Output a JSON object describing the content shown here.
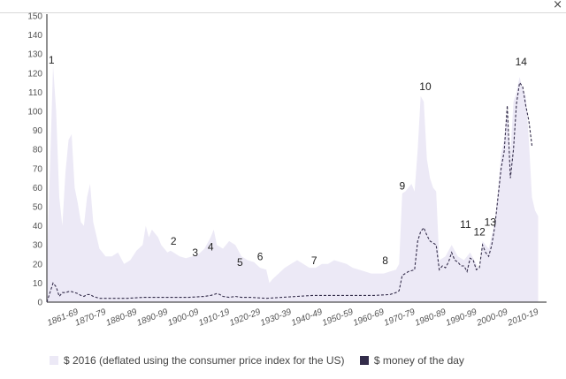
{
  "window": {
    "close_label": "×",
    "close_icon": "close-icon"
  },
  "chart_data": {
    "type": "area",
    "title": "",
    "xlabel": "",
    "ylabel": "",
    "ylim": [
      0,
      150
    ],
    "xlim": [
      1859,
      2019
    ],
    "grid": false,
    "legend_position": "bottom-left",
    "y_ticks": [
      0,
      10,
      20,
      30,
      40,
      50,
      60,
      70,
      80,
      90,
      100,
      110,
      120,
      130,
      140,
      150
    ],
    "x_ticks": [
      {
        "label": "1861-69",
        "x": 1861
      },
      {
        "label": "1870-79",
        "x": 1870
      },
      {
        "label": "1880-89",
        "x": 1880
      },
      {
        "label": "1890-99",
        "x": 1890
      },
      {
        "label": "1900-09",
        "x": 1900
      },
      {
        "label": "1910-19",
        "x": 1910
      },
      {
        "label": "1920-29",
        "x": 1920
      },
      {
        "label": "1930-39",
        "x": 1930
      },
      {
        "label": "1940-49",
        "x": 1940
      },
      {
        "label": "1950-59",
        "x": 1950
      },
      {
        "label": "1960-69",
        "x": 1960
      },
      {
        "label": "1970-79",
        "x": 1970
      },
      {
        "label": "1980-89",
        "x": 1980
      },
      {
        "label": "1990-99",
        "x": 1990
      },
      {
        "label": "2000-09",
        "x": 2000
      },
      {
        "label": "2010-19",
        "x": 2010
      }
    ],
    "series": [
      {
        "name": "$ 2016 (deflated using the consumer price index for the US)",
        "style": "area",
        "color": "#ece9f6",
        "x": [
          1859,
          1860,
          1861,
          1862,
          1863,
          1864,
          1865,
          1866,
          1867,
          1868,
          1869,
          1870,
          1871,
          1872,
          1873,
          1874,
          1875,
          1876,
          1877,
          1878,
          1880,
          1882,
          1884,
          1886,
          1888,
          1890,
          1891,
          1892,
          1893,
          1894,
          1895,
          1896,
          1897,
          1898,
          1899,
          1900,
          1902,
          1904,
          1906,
          1908,
          1910,
          1912,
          1913,
          1914,
          1916,
          1918,
          1920,
          1922,
          1924,
          1926,
          1928,
          1930,
          1931,
          1932,
          1934,
          1936,
          1938,
          1940,
          1942,
          1944,
          1946,
          1948,
          1950,
          1952,
          1954,
          1956,
          1958,
          1960,
          1962,
          1964,
          1966,
          1968,
          1970,
          1972,
          1973,
          1974,
          1975,
          1976,
          1977,
          1978,
          1979,
          1980,
          1981,
          1982,
          1983,
          1984,
          1985,
          1986,
          1988,
          1990,
          1992,
          1994,
          1996,
          1998,
          1999,
          2000,
          2001,
          2002,
          2003,
          2004,
          2005,
          2006,
          2007,
          2008,
          2009,
          2010,
          2011,
          2012,
          2013,
          2014,
          2015,
          2016,
          2017,
          2018
        ],
        "values": [
          20,
          70,
          124,
          100,
          55,
          40,
          68,
          85,
          88,
          60,
          52,
          42,
          40,
          55,
          62,
          42,
          35,
          28,
          26,
          24,
          24,
          26,
          20,
          22,
          27,
          30,
          40,
          34,
          38,
          36,
          34,
          30,
          28,
          26,
          27,
          26,
          24,
          23,
          24,
          25,
          28,
          34,
          38,
          30,
          28,
          32,
          30,
          24,
          22,
          21,
          18,
          17,
          10,
          12,
          15,
          18,
          20,
          22,
          20,
          18,
          18,
          20,
          20,
          22,
          21,
          20,
          18,
          17,
          16,
          15,
          15,
          15,
          16,
          17,
          20,
          57,
          58,
          60,
          62,
          58,
          80,
          108,
          105,
          75,
          65,
          60,
          58,
          22,
          24,
          30,
          24,
          22,
          26,
          20,
          17,
          32,
          30,
          28,
          35,
          42,
          58,
          78,
          85,
          100,
          78,
          105,
          110,
          118,
          112,
          108,
          85,
          55,
          48,
          45
        ]
      },
      {
        "name": "$ money of the day",
        "style": "dashed",
        "color": "#332c4a",
        "x": [
          1859,
          1860,
          1861,
          1862,
          1863,
          1864,
          1865,
          1866,
          1867,
          1868,
          1869,
          1870,
          1871,
          1872,
          1873,
          1874,
          1875,
          1876,
          1878,
          1880,
          1885,
          1890,
          1895,
          1900,
          1905,
          1910,
          1912,
          1913,
          1914,
          1915,
          1916,
          1918,
          1920,
          1922,
          1925,
          1930,
          1935,
          1940,
          1945,
          1950,
          1955,
          1960,
          1965,
          1970,
          1971,
          1972,
          1973,
          1974,
          1975,
          1976,
          1977,
          1978,
          1979,
          1980,
          1981,
          1982,
          1983,
          1984,
          1985,
          1986,
          1987,
          1988,
          1989,
          1990,
          1991,
          1992,
          1993,
          1994,
          1995,
          1996,
          1997,
          1998,
          1999,
          2000,
          2001,
          2002,
          2003,
          2004,
          2005,
          2006,
          2007,
          2008,
          2009,
          2010,
          2011,
          2012,
          2013,
          2014,
          2015,
          2016
        ],
        "values": [
          0,
          5,
          10,
          8,
          3,
          5,
          5,
          5.5,
          5.5,
          5,
          4.5,
          3.5,
          3,
          4,
          4,
          3,
          2.5,
          2,
          2,
          2,
          2,
          2.5,
          2.5,
          2.5,
          2.5,
          3,
          3.5,
          4,
          4.5,
          4,
          3,
          2.5,
          3,
          2.5,
          2.5,
          2,
          2.5,
          3,
          3.5,
          3.5,
          3.5,
          3.5,
          3.5,
          4,
          4.5,
          5,
          6,
          14,
          15,
          16,
          16.5,
          17,
          32,
          37,
          39,
          35,
          32,
          31,
          30,
          17,
          19,
          18,
          21,
          26,
          22,
          21,
          19,
          19,
          16,
          23,
          22,
          17,
          18,
          30,
          26,
          24,
          30,
          40,
          55,
          70,
          79,
          103,
          65,
          80,
          104,
          115,
          113,
          103,
          95,
          82
        ]
      }
    ],
    "annotations": [
      {
        "label": "1",
        "x": 1860.5,
        "y": 125
      },
      {
        "label": "2",
        "x": 1900,
        "y": 30
      },
      {
        "label": "3",
        "x": 1907,
        "y": 24
      },
      {
        "label": "4",
        "x": 1912,
        "y": 27
      },
      {
        "label": "5",
        "x": 1921.5,
        "y": 19
      },
      {
        "label": "6",
        "x": 1928,
        "y": 22
      },
      {
        "label": "7",
        "x": 1945.5,
        "y": 20
      },
      {
        "label": "8",
        "x": 1968.5,
        "y": 20
      },
      {
        "label": "9",
        "x": 1974,
        "y": 59
      },
      {
        "label": "10",
        "x": 1981.5,
        "y": 111
      },
      {
        "label": "11",
        "x": 1994.5,
        "y": 39
      },
      {
        "label": "12",
        "x": 1999,
        "y": 35
      },
      {
        "label": "13",
        "x": 2002.5,
        "y": 40
      },
      {
        "label": "14",
        "x": 2012.5,
        "y": 124
      }
    ]
  }
}
